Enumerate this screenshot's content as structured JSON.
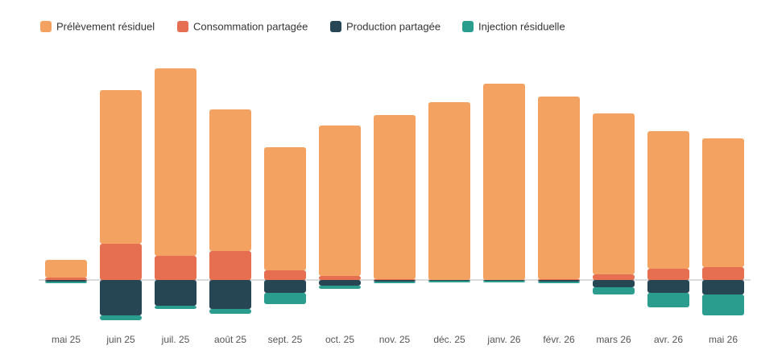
{
  "chart_data": {
    "type": "bar",
    "stacked": true,
    "categories": [
      "mai 25",
      "juin 25",
      "juil. 25",
      "août 25",
      "sept. 25",
      "oct. 25",
      "nov. 25",
      "déc. 25",
      "janv. 26",
      "févr. 26",
      "mars 26",
      "avr. 26",
      "mai 26"
    ],
    "series": [
      {
        "name": "Prélèvement résiduel",
        "color": "#f4a261",
        "values": [
          22,
          191,
          233,
          176,
          153,
          187,
          204,
          221,
          244,
          227,
          200,
          171,
          160
        ]
      },
      {
        "name": "Consommation partagée",
        "color": "#e76f51",
        "values": [
          3,
          45,
          30,
          36,
          12,
          5,
          1,
          0,
          0,
          1,
          7,
          14,
          16
        ]
      },
      {
        "name": "Production partagée",
        "color": "#264653",
        "values": [
          -2,
          -44,
          -32,
          -36,
          -16,
          -7,
          -2,
          -1,
          -1,
          -2,
          -9,
          -16,
          -18
        ]
      },
      {
        "name": "Injection résiduelle",
        "color": "#2a9d8f",
        "values": [
          -2,
          -6,
          -4,
          -6,
          -14,
          -4,
          -2,
          -2,
          -2,
          -2,
          -9,
          -18,
          -26
        ]
      }
    ],
    "ylim": [
      -92,
      278
    ]
  }
}
